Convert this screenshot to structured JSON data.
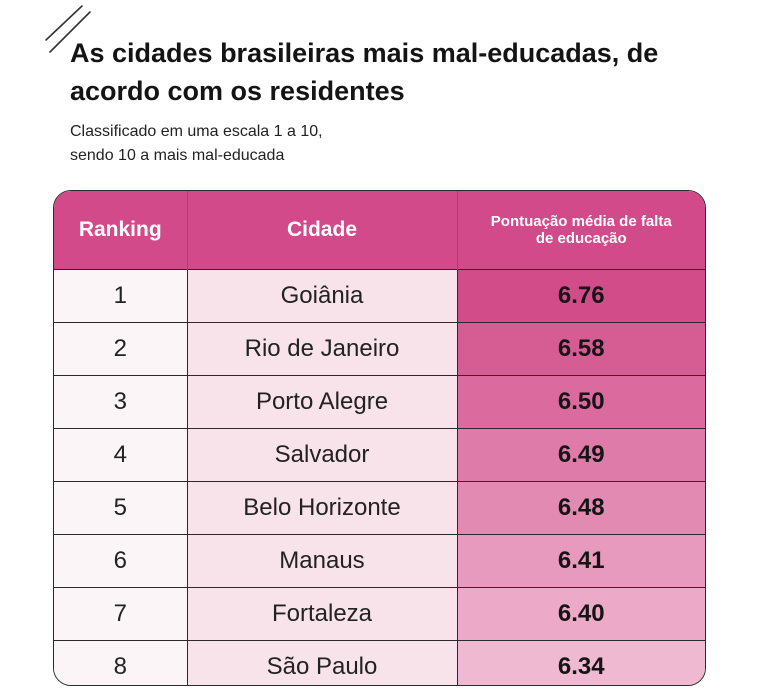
{
  "title": "As cidades brasileiras mais mal-educadas, de acordo com os residentes",
  "subtitle": "Classificado em uma escala 1 a 10,\nsendo 10 a mais mal-educada",
  "colors": {
    "header_bg": "#d34a8a",
    "score_scale_start": "#d24c8a",
    "score_scale_end": "#f0b9d2"
  },
  "chart_data": {
    "type": "table",
    "title": "As cidades brasileiras mais mal-educadas, de acordo com os residentes",
    "subtitle": "Classificado em uma escala 1 a 10, sendo 10 a mais mal-educada",
    "columns": [
      "Ranking",
      "Cidade",
      "Pontuação média de falta de educação"
    ],
    "rows": [
      {
        "rank": "1",
        "city": "Goiânia",
        "score": "6.76"
      },
      {
        "rank": "2",
        "city": "Rio de Janeiro",
        "score": "6.58"
      },
      {
        "rank": "3",
        "city": "Porto Alegre",
        "score": "6.50"
      },
      {
        "rank": "4",
        "city": "Salvador",
        "score": "6.49"
      },
      {
        "rank": "5",
        "city": "Belo Horizonte",
        "score": "6.48"
      },
      {
        "rank": "6",
        "city": "Manaus",
        "score": "6.41"
      },
      {
        "rank": "7",
        "city": "Fortaleza",
        "score": "6.40"
      },
      {
        "rank": "8",
        "city": "São Paulo",
        "score": "6.34"
      }
    ]
  }
}
